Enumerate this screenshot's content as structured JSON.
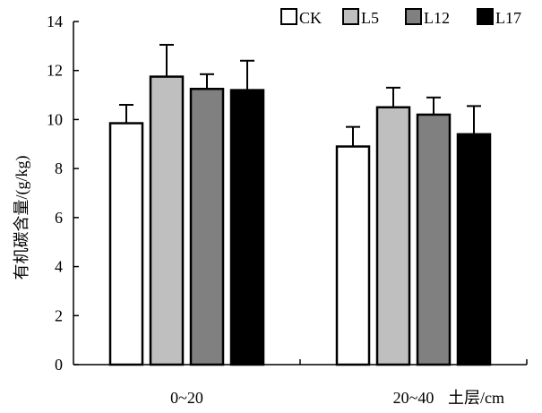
{
  "chart_data": {
    "type": "bar",
    "title": "",
    "xlabel": "土层/cm",
    "ylabel": "有机碳含量/(g/kg)",
    "categories": [
      "0~20",
      "20~40"
    ],
    "ylim": [
      0,
      14
    ],
    "yticks": [
      0,
      2,
      4,
      6,
      8,
      10,
      12,
      14
    ],
    "legend_position": "top-right",
    "grid": false,
    "series": [
      {
        "name": "CK",
        "color": "#ffffff",
        "values": [
          9.85,
          8.9
        ],
        "errors": [
          0.75,
          0.8
        ]
      },
      {
        "name": "L5",
        "color": "#bfbfbf",
        "values": [
          11.75,
          10.5
        ],
        "errors": [
          1.3,
          0.8
        ]
      },
      {
        "name": "L12",
        "color": "#808080",
        "values": [
          11.25,
          10.2
        ],
        "errors": [
          0.6,
          0.7
        ]
      },
      {
        "name": "L17",
        "color": "#000000",
        "values": [
          11.2,
          9.4
        ],
        "errors": [
          1.2,
          1.15
        ]
      }
    ]
  }
}
